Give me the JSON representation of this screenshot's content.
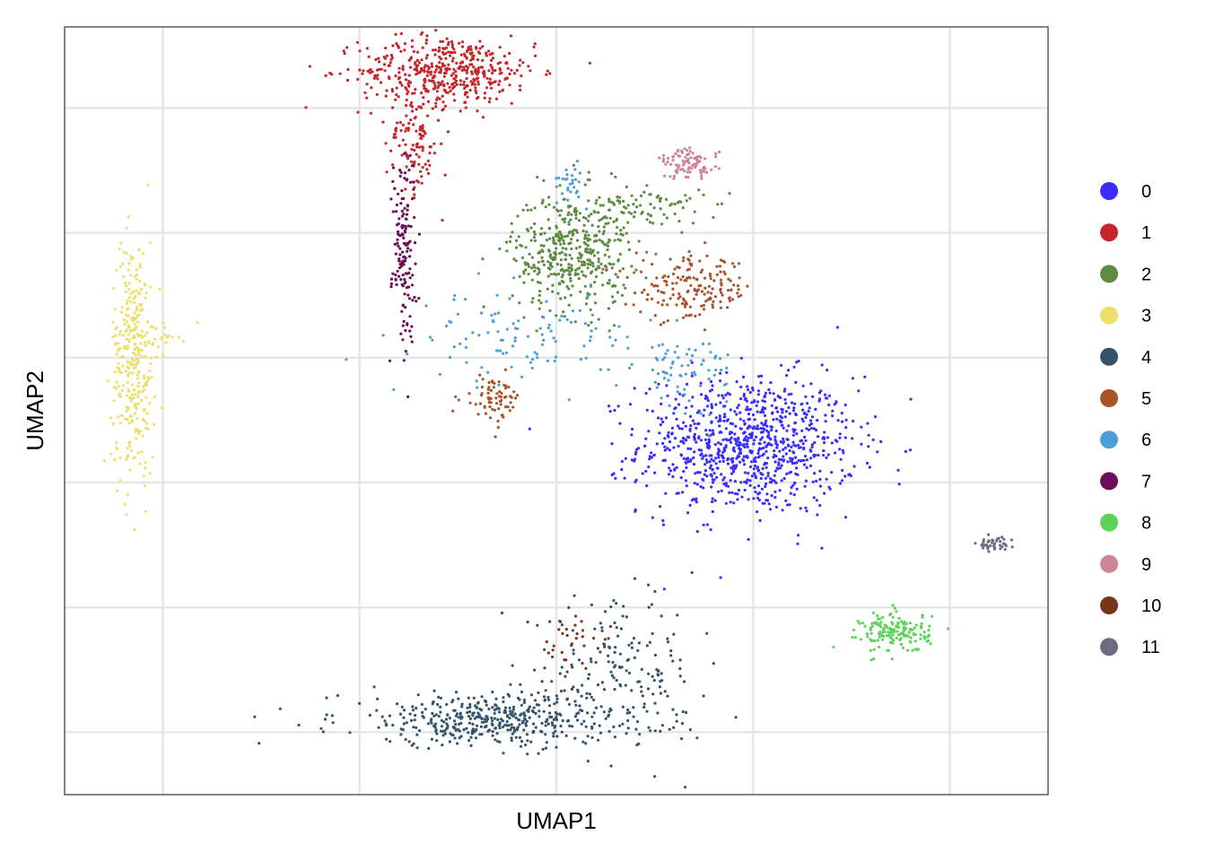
{
  "chart_data": {
    "type": "scatter",
    "title": "",
    "xlabel": "UMAP1",
    "ylabel": "UMAP2",
    "xlim": [
      -10,
      10
    ],
    "ylim": [
      -7,
      5.3
    ],
    "x_gridlines": [
      -8,
      -4,
      0,
      4,
      8
    ],
    "y_gridlines": [
      -6,
      -4,
      -2,
      0,
      2,
      4
    ],
    "tick_labels_shown": false,
    "grid": true,
    "legend_position": "right",
    "series": [
      {
        "name": "0",
        "color": "#3A2EFE",
        "clusters": [
          {
            "cx": 3.9,
            "cy": -1.4,
            "sx": 1.1,
            "sy": 0.55,
            "n": 900
          }
        ]
      },
      {
        "name": "1",
        "color": "#C6262A",
        "clusters": [
          {
            "cx": -2.2,
            "cy": 4.6,
            "sx": 0.9,
            "sy": 0.28,
            "n": 450
          },
          {
            "cx": -2.9,
            "cy": 3.5,
            "sx": 0.28,
            "sy": 0.45,
            "n": 120
          }
        ]
      },
      {
        "name": "2",
        "color": "#5D8B42",
        "clusters": [
          {
            "cx": 0.3,
            "cy": 1.7,
            "sx": 0.6,
            "sy": 0.48,
            "n": 420
          },
          {
            "cx": 1.8,
            "cy": 2.4,
            "sx": 0.6,
            "sy": 0.2,
            "n": 90
          }
        ]
      },
      {
        "name": "3",
        "color": "#EBE06E",
        "clusters": [
          {
            "cx": -8.6,
            "cy": 0.0,
            "sx": 0.22,
            "sy": 0.95,
            "n": 320
          },
          {
            "cx": -8.1,
            "cy": 0.3,
            "sx": 0.22,
            "sy": 0.12,
            "n": 25
          }
        ]
      },
      {
        "name": "4",
        "color": "#34546E",
        "clusters": [
          {
            "cx": -1.2,
            "cy": -5.8,
            "sx": 1.6,
            "sy": 0.22,
            "n": 450
          },
          {
            "cx": 1.3,
            "cy": -5.0,
            "sx": 0.8,
            "sy": 0.55,
            "n": 160
          }
        ]
      },
      {
        "name": "5",
        "color": "#A9532A",
        "clusters": [
          {
            "cx": 2.8,
            "cy": 1.1,
            "sx": 0.6,
            "sy": 0.25,
            "n": 170
          },
          {
            "cx": -1.3,
            "cy": -0.65,
            "sx": 0.3,
            "sy": 0.18,
            "n": 70
          }
        ]
      },
      {
        "name": "6",
        "color": "#4C9FD6",
        "clusters": [
          {
            "cx": -0.6,
            "cy": 0.3,
            "sx": 1.1,
            "sy": 0.35,
            "n": 110
          },
          {
            "cx": 2.6,
            "cy": -0.2,
            "sx": 0.5,
            "sy": 0.3,
            "n": 70
          },
          {
            "cx": 0.3,
            "cy": 2.8,
            "sx": 0.12,
            "sy": 0.2,
            "n": 30
          }
        ]
      },
      {
        "name": "7",
        "color": "#6D0F58",
        "clusters": [
          {
            "cx": -3.1,
            "cy": 1.8,
            "sx": 0.12,
            "sy": 0.75,
            "n": 150
          }
        ]
      },
      {
        "name": "8",
        "color": "#5CD45C",
        "clusters": [
          {
            "cx": 6.9,
            "cy": -4.4,
            "sx": 0.35,
            "sy": 0.16,
            "n": 160
          }
        ]
      },
      {
        "name": "9",
        "color": "#CF8397",
        "clusters": [
          {
            "cx": 2.7,
            "cy": 3.1,
            "sx": 0.3,
            "sy": 0.12,
            "n": 90
          }
        ]
      },
      {
        "name": "10",
        "color": "#7A3518",
        "clusters": [
          {
            "cx": 0.3,
            "cy": -4.5,
            "sx": 0.45,
            "sy": 0.35,
            "n": 35
          }
        ]
      },
      {
        "name": "11",
        "color": "#6E6A82",
        "clusters": [
          {
            "cx": 8.9,
            "cy": -3.0,
            "sx": 0.18,
            "sy": 0.06,
            "n": 40
          }
        ]
      }
    ]
  }
}
